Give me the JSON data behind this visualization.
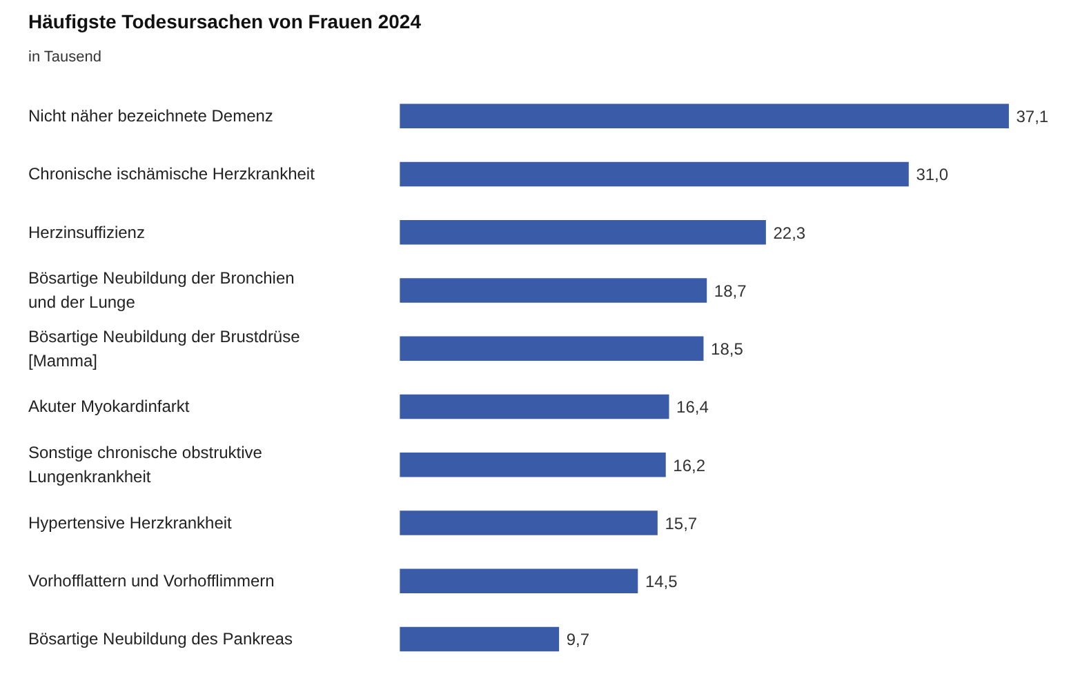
{
  "chart_data": {
    "type": "bar",
    "orientation": "horizontal",
    "title": "Häufigste Todesursachen von Frauen 2024",
    "subtitle": "in Tausend",
    "categories": [
      "Nicht näher bezeichnete Demenz",
      "Chronische ischämische Herzkrankheit",
      "Herzinsuffizienz",
      "Bösartige Neubildung der Bronchien\nund der Lunge",
      "Bösartige Neubildung der Brustdrüse\n[Mamma]",
      "Akuter Myokardinfarkt",
      "Sonstige chronische obstruktive\nLungenkrankheit",
      "Hypertensive Herzkrankheit",
      "Vorhofflattern und Vorhofflimmern",
      "Bösartige Neubildung des Pankreas"
    ],
    "values": [
      37.1,
      31.0,
      22.3,
      18.7,
      18.5,
      16.4,
      16.2,
      15.7,
      14.5,
      9.7
    ],
    "value_labels": [
      "37,1",
      "31,0",
      "22,3",
      "18,7",
      "18,5",
      "16,4",
      "16,2",
      "15,7",
      "14,5",
      "9,7"
    ],
    "color": "#3a5ba8",
    "grid": false
  }
}
